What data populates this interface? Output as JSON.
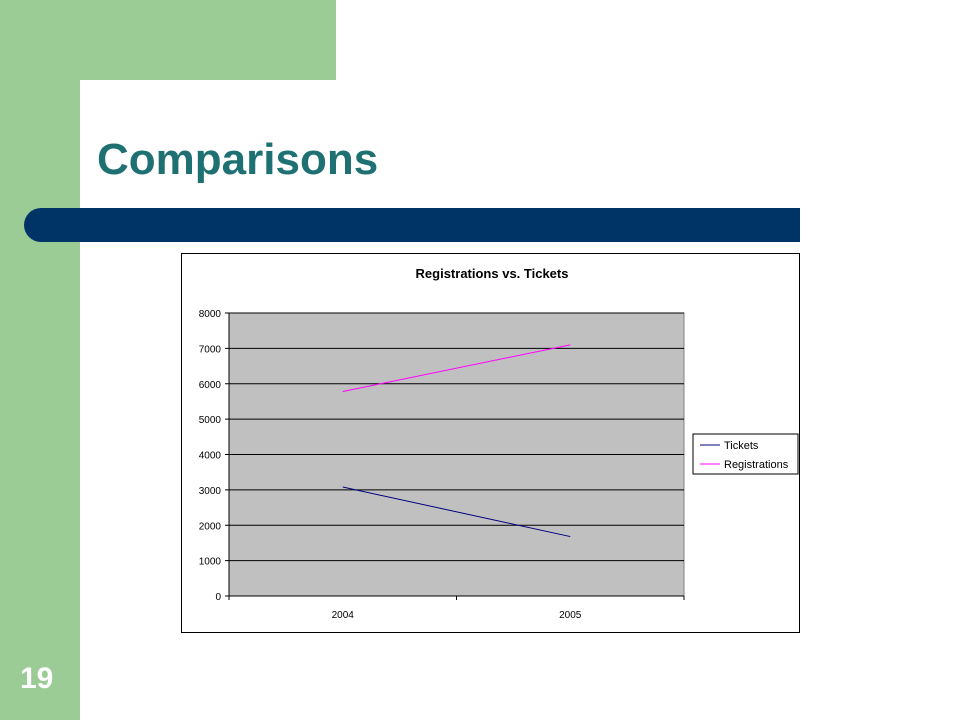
{
  "slide": {
    "title": "Comparisons",
    "number": "19"
  },
  "colors": {
    "sidebar": "#9ccc96",
    "title_text": "#1e7072",
    "title_bar": "#003466",
    "plot_background": "#c0c0c0",
    "tickets_line": "#000080",
    "registrations_line": "#ff00ff"
  },
  "chart_data": {
    "type": "line",
    "title": "Registrations vs. Tickets",
    "categories": [
      "2004",
      "2005"
    ],
    "series": [
      {
        "name": "Tickets",
        "values": [
          3080,
          1680
        ],
        "color": "#000080"
      },
      {
        "name": "Registrations",
        "values": [
          5780,
          7100
        ],
        "color": "#ff00ff"
      }
    ],
    "ylim": [
      0,
      8000
    ],
    "yticks": [
      "0",
      "1000",
      "2000",
      "3000",
      "4000",
      "5000",
      "6000",
      "7000",
      "8000"
    ],
    "xlabel": "",
    "ylabel": "",
    "grid": true,
    "legend": "right"
  }
}
